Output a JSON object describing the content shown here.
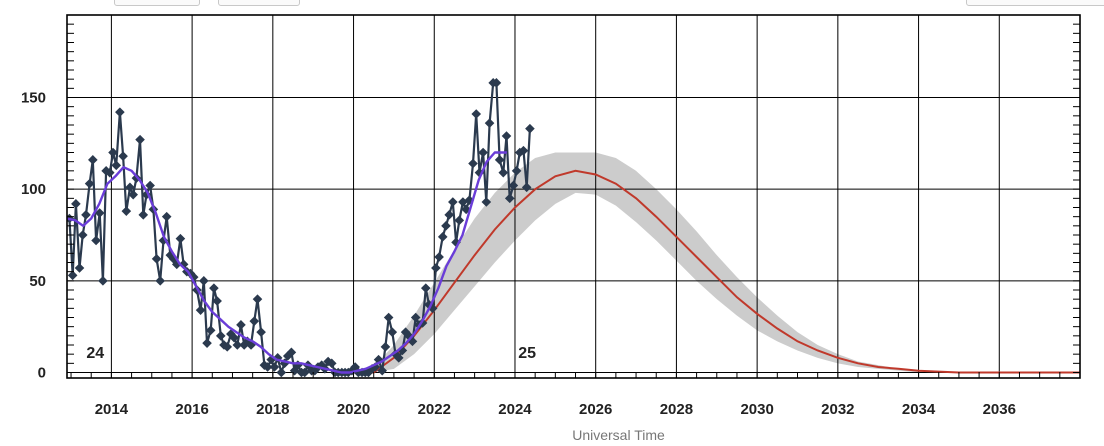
{
  "toolbar": {
    "buttons": [
      "",
      ""
    ],
    "right_control": ""
  },
  "chart_data": {
    "type": "line",
    "xlabel": "Universal Time",
    "ylabel": "",
    "xlim": [
      2012.9,
      2038.0
    ],
    "ylim": [
      -3,
      195
    ],
    "x_ticks": [
      2014,
      2016,
      2018,
      2020,
      2022,
      2024,
      2026,
      2028,
      2030,
      2032,
      2034,
      2036
    ],
    "y_ticks": [
      0,
      50,
      100,
      150
    ],
    "grid": true,
    "annotations": [
      {
        "text": "24",
        "x": 2013.6,
        "y": 8
      },
      {
        "text": "25",
        "x": 2024.3,
        "y": 8
      }
    ],
    "colors": {
      "monthly": "#2b3a4e",
      "smoothed": "#6a3dd8",
      "predicted": "#c0392b",
      "band": "#cccccc",
      "grid": "#000000"
    },
    "series": [
      {
        "kind": "monthly",
        "style": "line+diamond",
        "points": [
          [
            2012.96,
            84
          ],
          [
            2013.04,
            53
          ],
          [
            2013.12,
            92
          ],
          [
            2013.21,
            57
          ],
          [
            2013.29,
            75
          ],
          [
            2013.37,
            86
          ],
          [
            2013.46,
            103
          ],
          [
            2013.54,
            116
          ],
          [
            2013.62,
            72
          ],
          [
            2013.71,
            87
          ],
          [
            2013.79,
            50
          ],
          [
            2013.87,
            110
          ],
          [
            2013.96,
            109
          ],
          [
            2014.04,
            120
          ],
          [
            2014.12,
            113
          ],
          [
            2014.21,
            142
          ],
          [
            2014.29,
            118
          ],
          [
            2014.37,
            88
          ],
          [
            2014.46,
            101
          ],
          [
            2014.54,
            97
          ],
          [
            2014.62,
            106
          ],
          [
            2014.71,
            127
          ],
          [
            2014.79,
            86
          ],
          [
            2014.87,
            97
          ],
          [
            2014.96,
            102
          ],
          [
            2015.04,
            89
          ],
          [
            2015.12,
            62
          ],
          [
            2015.21,
            50
          ],
          [
            2015.29,
            72
          ],
          [
            2015.37,
            85
          ],
          [
            2015.46,
            64
          ],
          [
            2015.54,
            62
          ],
          [
            2015.62,
            59
          ],
          [
            2015.71,
            73
          ],
          [
            2015.79,
            59
          ],
          [
            2015.87,
            55
          ],
          [
            2015.96,
            54
          ],
          [
            2016.04,
            52
          ],
          [
            2016.12,
            45
          ],
          [
            2016.21,
            34
          ],
          [
            2016.29,
            50
          ],
          [
            2016.37,
            16
          ],
          [
            2016.46,
            23
          ],
          [
            2016.54,
            46
          ],
          [
            2016.62,
            39
          ],
          [
            2016.71,
            20
          ],
          [
            2016.79,
            15
          ],
          [
            2016.87,
            14
          ],
          [
            2016.96,
            21
          ],
          [
            2017.04,
            19
          ],
          [
            2017.12,
            15
          ],
          [
            2017.21,
            26
          ],
          [
            2017.29,
            15
          ],
          [
            2017.37,
            17
          ],
          [
            2017.46,
            15
          ],
          [
            2017.54,
            28
          ],
          [
            2017.62,
            40
          ],
          [
            2017.71,
            22
          ],
          [
            2017.79,
            4
          ],
          [
            2017.87,
            3
          ],
          [
            2017.96,
            7
          ],
          [
            2018.04,
            3
          ],
          [
            2018.12,
            8
          ],
          [
            2018.21,
            0
          ],
          [
            2018.29,
            5
          ],
          [
            2018.37,
            9
          ],
          [
            2018.46,
            11
          ],
          [
            2018.54,
            1
          ],
          [
            2018.62,
            4
          ],
          [
            2018.71,
            0
          ],
          [
            2018.79,
            0
          ],
          [
            2018.87,
            4
          ],
          [
            2018.96,
            1
          ],
          [
            2019.04,
            1
          ],
          [
            2019.12,
            3
          ],
          [
            2019.21,
            4
          ],
          [
            2019.29,
            2
          ],
          [
            2019.37,
            6
          ],
          [
            2019.46,
            5
          ],
          [
            2019.54,
            0
          ],
          [
            2019.62,
            0
          ],
          [
            2019.71,
            0
          ],
          [
            2019.79,
            0
          ],
          [
            2019.87,
            0
          ],
          [
            2019.96,
            1
          ],
          [
            2020.04,
            3
          ],
          [
            2020.12,
            0
          ],
          [
            2020.21,
            0
          ],
          [
            2020.29,
            0
          ],
          [
            2020.37,
            0
          ],
          [
            2020.46,
            2
          ],
          [
            2020.54,
            3
          ],
          [
            2020.62,
            7
          ],
          [
            2020.71,
            1
          ],
          [
            2020.79,
            14
          ],
          [
            2020.87,
            30
          ],
          [
            2020.96,
            22
          ],
          [
            2021.04,
            10
          ],
          [
            2021.12,
            8
          ],
          [
            2021.21,
            12
          ],
          [
            2021.29,
            22
          ],
          [
            2021.37,
            20
          ],
          [
            2021.46,
            17
          ],
          [
            2021.54,
            30
          ],
          [
            2021.62,
            26
          ],
          [
            2021.71,
            27
          ],
          [
            2021.79,
            46
          ],
          [
            2021.87,
            37
          ],
          [
            2021.96,
            35
          ],
          [
            2022.04,
            57
          ],
          [
            2022.12,
            63
          ],
          [
            2022.21,
            74
          ],
          [
            2022.29,
            80
          ],
          [
            2022.37,
            86
          ],
          [
            2022.46,
            93
          ],
          [
            2022.54,
            71
          ],
          [
            2022.62,
            83
          ],
          [
            2022.71,
            93
          ],
          [
            2022.79,
            89
          ],
          [
            2022.87,
            94
          ],
          [
            2022.96,
            114
          ],
          [
            2023.04,
            141
          ],
          [
            2023.12,
            109
          ],
          [
            2023.21,
            120
          ],
          [
            2023.29,
            93
          ],
          [
            2023.37,
            136
          ],
          [
            2023.46,
            158
          ],
          [
            2023.54,
            158
          ],
          [
            2023.62,
            116
          ],
          [
            2023.71,
            109
          ],
          [
            2023.79,
            129
          ],
          [
            2023.87,
            95
          ],
          [
            2023.96,
            102
          ],
          [
            2024.04,
            110
          ],
          [
            2024.12,
            120
          ],
          [
            2024.21,
            121
          ],
          [
            2024.29,
            101
          ],
          [
            2024.37,
            133
          ]
        ]
      },
      {
        "kind": "smoothed",
        "style": "line",
        "points": [
          [
            2012.9,
            84
          ],
          [
            2013.1,
            83
          ],
          [
            2013.3,
            80
          ],
          [
            2013.5,
            84
          ],
          [
            2013.7,
            92
          ],
          [
            2013.9,
            103
          ],
          [
            2014.1,
            107
          ],
          [
            2014.3,
            112
          ],
          [
            2014.5,
            110
          ],
          [
            2014.7,
            105
          ],
          [
            2014.9,
            98
          ],
          [
            2015.1,
            87
          ],
          [
            2015.3,
            74
          ],
          [
            2015.5,
            66
          ],
          [
            2015.7,
            59
          ],
          [
            2015.9,
            55
          ],
          [
            2016.1,
            47
          ],
          [
            2016.3,
            39
          ],
          [
            2016.5,
            33
          ],
          [
            2016.7,
            29
          ],
          [
            2016.9,
            25
          ],
          [
            2017.1,
            22
          ],
          [
            2017.3,
            19
          ],
          [
            2017.5,
            17
          ],
          [
            2017.7,
            14
          ],
          [
            2017.9,
            10
          ],
          [
            2018.1,
            7
          ],
          [
            2018.3,
            6
          ],
          [
            2018.5,
            5
          ],
          [
            2018.7,
            5
          ],
          [
            2018.9,
            4
          ],
          [
            2019.1,
            3
          ],
          [
            2019.3,
            2
          ],
          [
            2019.5,
            1
          ],
          [
            2019.7,
            0
          ],
          [
            2019.9,
            0
          ],
          [
            2020.1,
            1
          ],
          [
            2020.3,
            2
          ],
          [
            2020.5,
            4
          ],
          [
            2020.7,
            6
          ],
          [
            2020.9,
            9
          ],
          [
            2021.1,
            12
          ],
          [
            2021.3,
            16
          ],
          [
            2021.5,
            21
          ],
          [
            2021.7,
            28
          ],
          [
            2021.9,
            36
          ],
          [
            2022.1,
            46
          ],
          [
            2022.3,
            58
          ],
          [
            2022.5,
            66
          ],
          [
            2022.7,
            75
          ],
          [
            2022.9,
            90
          ],
          [
            2023.1,
            105
          ],
          [
            2023.3,
            115
          ],
          [
            2023.5,
            120
          ],
          [
            2023.7,
            120
          ],
          [
            2023.8,
            120
          ]
        ]
      },
      {
        "kind": "predicted",
        "style": "line+band",
        "points": [
          [
            2019.5,
            0
          ],
          [
            2020.0,
            0
          ],
          [
            2020.5,
            0
          ],
          [
            2021.0,
            8
          ],
          [
            2021.5,
            20
          ],
          [
            2022.0,
            34
          ],
          [
            2022.5,
            49
          ],
          [
            2023.0,
            64
          ],
          [
            2023.5,
            78
          ],
          [
            2024.0,
            90
          ],
          [
            2024.5,
            100
          ],
          [
            2025.0,
            107
          ],
          [
            2025.5,
            110
          ],
          [
            2026.0,
            108
          ],
          [
            2026.5,
            103
          ],
          [
            2027.0,
            95
          ],
          [
            2027.5,
            85
          ],
          [
            2028.0,
            74
          ],
          [
            2028.5,
            63
          ],
          [
            2029.0,
            52
          ],
          [
            2029.5,
            41
          ],
          [
            2030.0,
            32
          ],
          [
            2030.5,
            24
          ],
          [
            2031.0,
            17
          ],
          [
            2031.5,
            12
          ],
          [
            2032.0,
            8
          ],
          [
            2032.5,
            5
          ],
          [
            2033.0,
            3
          ],
          [
            2033.5,
            2
          ],
          [
            2034.0,
            1
          ],
          [
            2035.0,
            0
          ],
          [
            2036.0,
            0
          ],
          [
            2037.0,
            0
          ],
          [
            2038.0,
            0
          ]
        ],
        "band_upper": [
          [
            2019.5,
            0
          ],
          [
            2020.0,
            0
          ],
          [
            2020.5,
            3
          ],
          [
            2021.0,
            15
          ],
          [
            2021.5,
            31
          ],
          [
            2022.0,
            49
          ],
          [
            2022.5,
            67
          ],
          [
            2023.0,
            84
          ],
          [
            2023.5,
            98
          ],
          [
            2024.0,
            109
          ],
          [
            2024.5,
            117
          ],
          [
            2025.0,
            120
          ],
          [
            2025.5,
            120
          ],
          [
            2026.0,
            120
          ],
          [
            2026.5,
            117
          ],
          [
            2027.0,
            110
          ],
          [
            2027.5,
            100
          ],
          [
            2028.0,
            89
          ],
          [
            2028.5,
            77
          ],
          [
            2029.0,
            64
          ],
          [
            2029.5,
            52
          ],
          [
            2030.0,
            41
          ],
          [
            2030.5,
            31
          ],
          [
            2031.0,
            22
          ],
          [
            2031.5,
            15
          ],
          [
            2032.0,
            10
          ],
          [
            2032.5,
            6
          ],
          [
            2033.0,
            4
          ],
          [
            2033.5,
            2
          ],
          [
            2034.0,
            1
          ],
          [
            2035.0,
            0
          ],
          [
            2036.0,
            0
          ],
          [
            2037.0,
            0
          ],
          [
            2038.0,
            0
          ]
        ],
        "band_lower": [
          [
            2019.5,
            0
          ],
          [
            2020.0,
            0
          ],
          [
            2020.5,
            0
          ],
          [
            2021.0,
            2
          ],
          [
            2021.5,
            10
          ],
          [
            2022.0,
            21
          ],
          [
            2022.5,
            34
          ],
          [
            2023.0,
            47
          ],
          [
            2023.5,
            60
          ],
          [
            2024.0,
            72
          ],
          [
            2024.5,
            83
          ],
          [
            2025.0,
            92
          ],
          [
            2025.5,
            98
          ],
          [
            2026.0,
            97
          ],
          [
            2026.5,
            91
          ],
          [
            2027.0,
            82
          ],
          [
            2027.5,
            72
          ],
          [
            2028.0,
            61
          ],
          [
            2028.5,
            50
          ],
          [
            2029.0,
            40
          ],
          [
            2029.5,
            31
          ],
          [
            2030.0,
            23
          ],
          [
            2030.5,
            17
          ],
          [
            2031.0,
            12
          ],
          [
            2031.5,
            8
          ],
          [
            2032.0,
            5
          ],
          [
            2032.5,
            3
          ],
          [
            2033.0,
            2
          ],
          [
            2033.5,
            1
          ],
          [
            2034.0,
            0
          ],
          [
            2035.0,
            0
          ],
          [
            2036.0,
            0
          ],
          [
            2037.0,
            0
          ],
          [
            2038.0,
            0
          ]
        ]
      }
    ]
  }
}
